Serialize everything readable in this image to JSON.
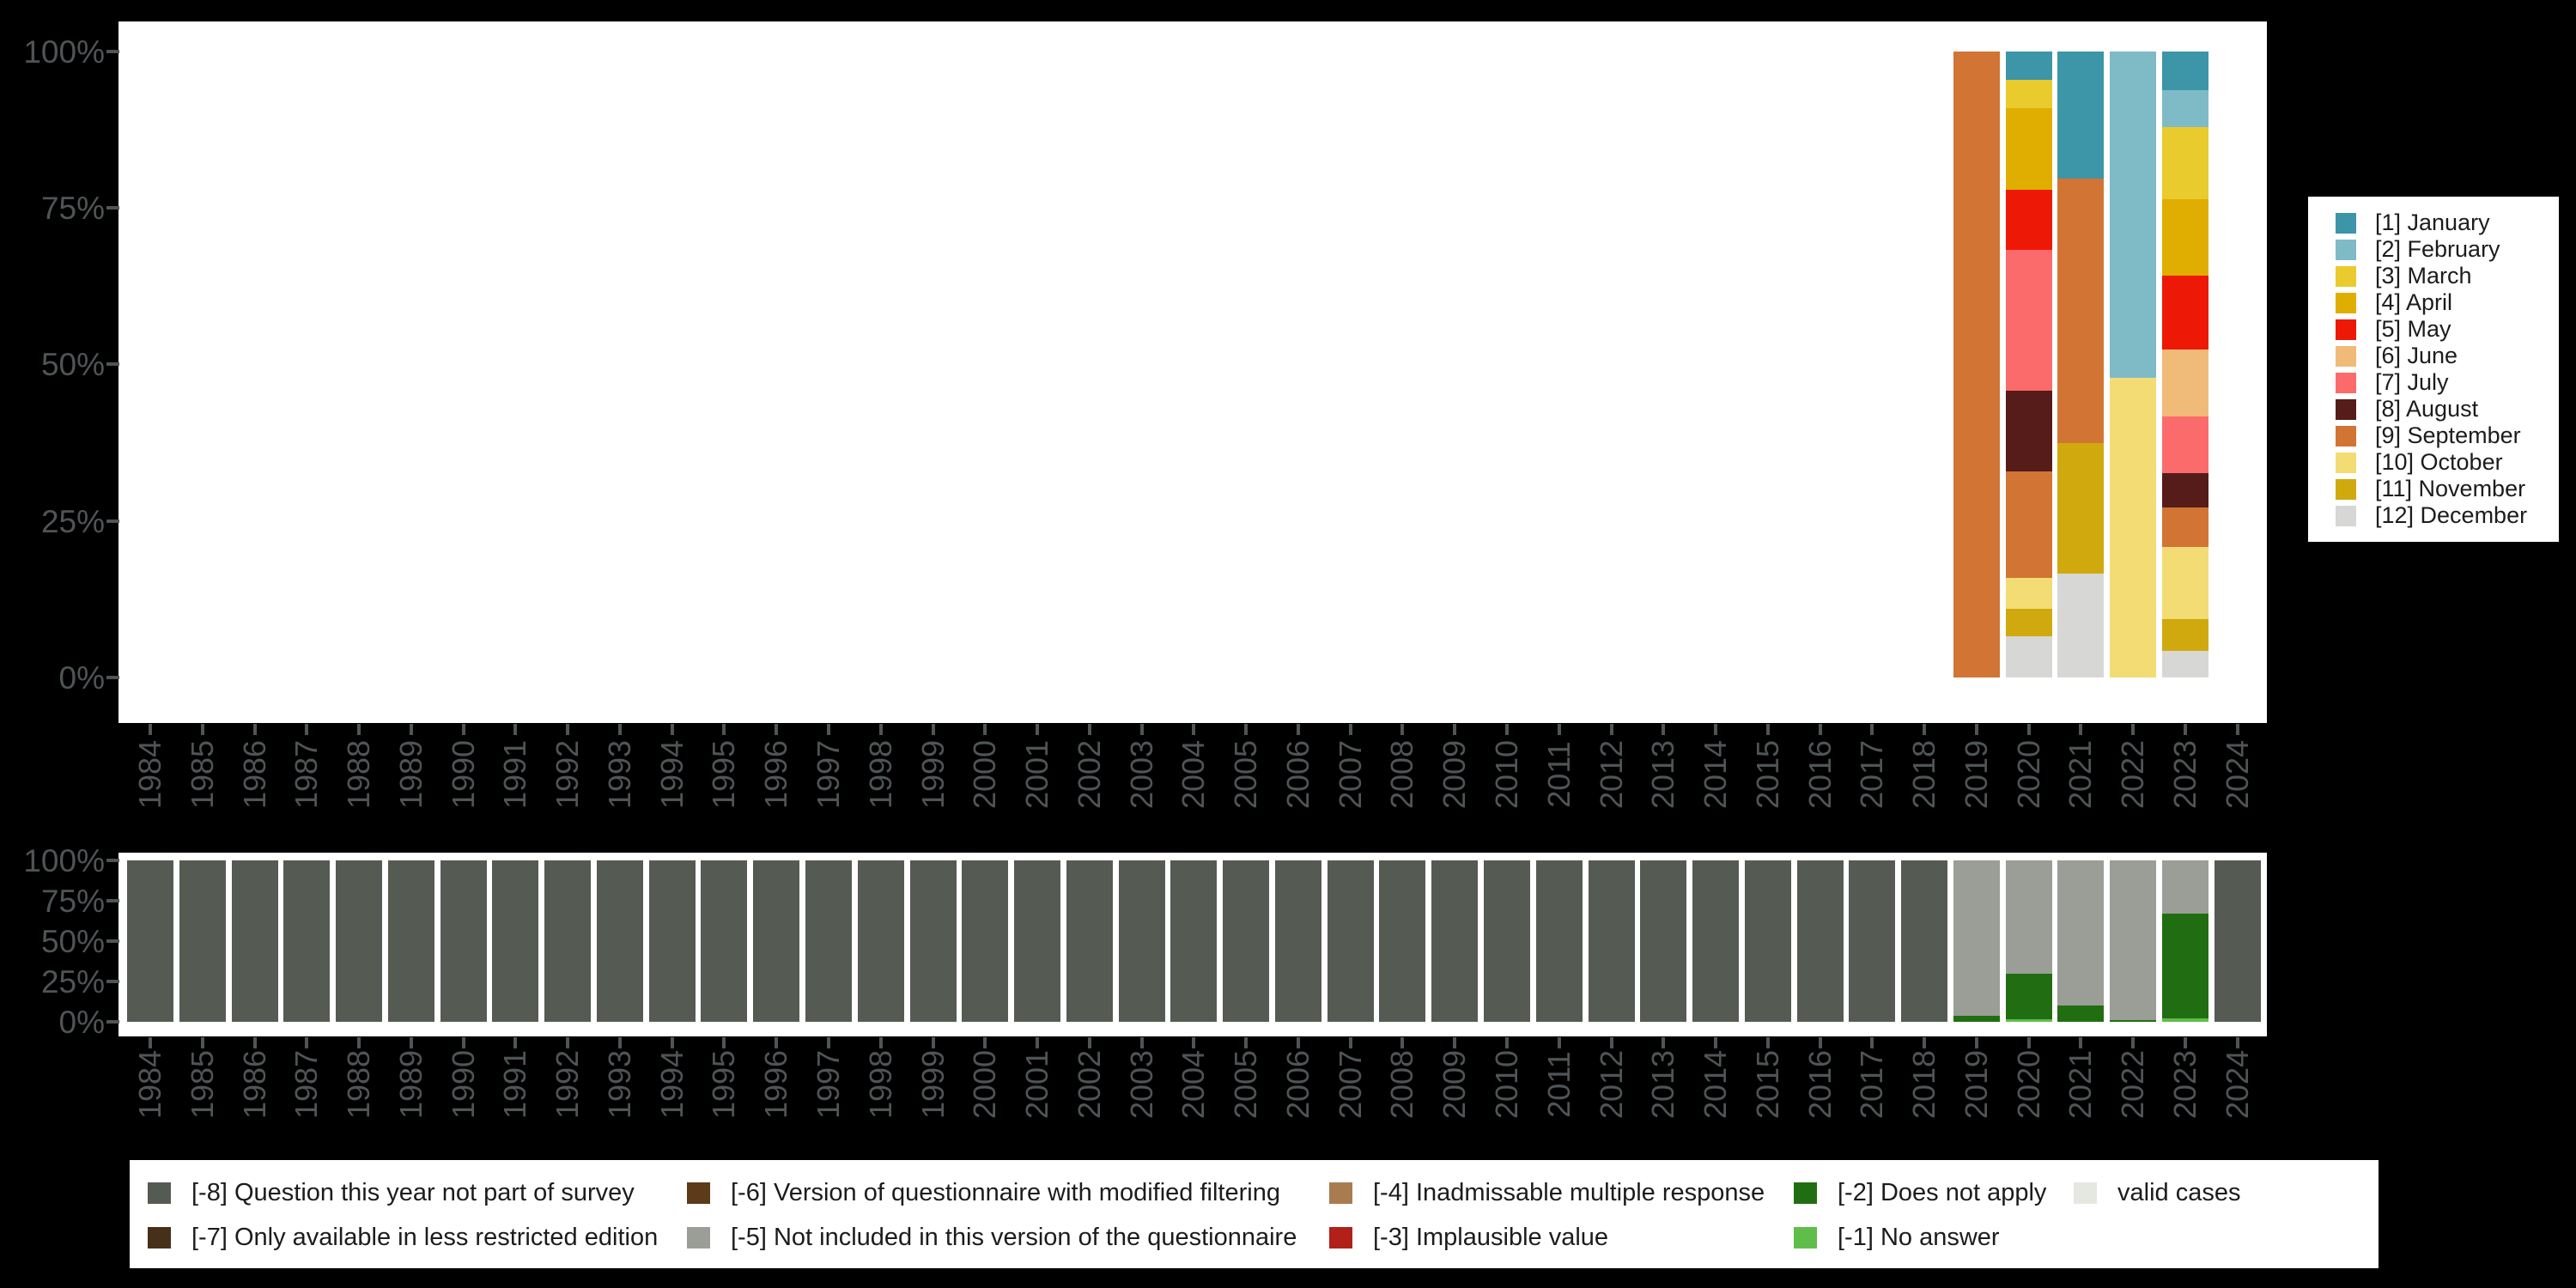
{
  "background_color": "#000000",
  "panel_color": "#ffffff",
  "axis": {
    "color": "#4f5456",
    "y_tick_labels": [
      "100%",
      "75%",
      "50%",
      "25%",
      "0%"
    ]
  },
  "years": [
    "1984",
    "1985",
    "1986",
    "1987",
    "1988",
    "1989",
    "1990",
    "1991",
    "1992",
    "1993",
    "1994",
    "1995",
    "1996",
    "1997",
    "1998",
    "1999",
    "2000",
    "2001",
    "2002",
    "2003",
    "2004",
    "2005",
    "2006",
    "2007",
    "2008",
    "2009",
    "2010",
    "2011",
    "2012",
    "2013",
    "2014",
    "2015",
    "2016",
    "2017",
    "2018",
    "2019",
    "2020",
    "2021",
    "2022",
    "2023",
    "2024"
  ],
  "chart_data": [
    {
      "id": "months",
      "type": "bar",
      "stacked": true,
      "unit": "percent",
      "ylim": [
        0,
        100
      ],
      "y_tick_labels": [
        "0%",
        "25%",
        "50%",
        "75%",
        "100%"
      ],
      "grid": false,
      "legend_position": "right",
      "categories": [
        "1984",
        "1985",
        "1986",
        "1987",
        "1988",
        "1989",
        "1990",
        "1991",
        "1992",
        "1993",
        "1994",
        "1995",
        "1996",
        "1997",
        "1998",
        "1999",
        "2000",
        "2001",
        "2002",
        "2003",
        "2004",
        "2005",
        "2006",
        "2007",
        "2008",
        "2009",
        "2010",
        "2011",
        "2012",
        "2013",
        "2014",
        "2015",
        "2016",
        "2017",
        "2018",
        "2019",
        "2020",
        "2021",
        "2022",
        "2023",
        "2024"
      ],
      "series": [
        {
          "key": "1",
          "label": "[1] January",
          "color": "#3d95a8",
          "values_by_year": {
            "2020": 4.6,
            "2021": 20.4,
            "2023": 6.2
          }
        },
        {
          "key": "2",
          "label": "[2] February",
          "color": "#7fbac7",
          "values_by_year": {
            "2022": 52.2,
            "2023": 5.9
          }
        },
        {
          "key": "3",
          "label": "[3] March",
          "color": "#e9cb2d",
          "values_by_year": {
            "2020": 4.5,
            "2023": 11.6
          }
        },
        {
          "key": "4",
          "label": "[4] April",
          "color": "#dfae00",
          "values_by_year": {
            "2020": 13.1,
            "2023": 12.1
          }
        },
        {
          "key": "5",
          "label": "[5] May",
          "color": "#ee1806",
          "values_by_year": {
            "2020": 9.6,
            "2023": 11.9
          }
        },
        {
          "key": "6",
          "label": "[6] June",
          "color": "#f0ba79",
          "values_by_year": {
            "2023": 10.6
          }
        },
        {
          "key": "7",
          "label": "[7] July",
          "color": "#fc6b6b",
          "values_by_year": {
            "2020": 22.4,
            "2023": 9.1
          }
        },
        {
          "key": "8",
          "label": "[8] August",
          "color": "#551c1a",
          "values_by_year": {
            "2020": 12.9,
            "2023": 5.5
          }
        },
        {
          "key": "9",
          "label": "[9] September",
          "color": "#d27433",
          "values_by_year": {
            "2019": 100,
            "2020": 17.0,
            "2021": 42.2,
            "2023": 6.2
          }
        },
        {
          "key": "10",
          "label": "[10] October",
          "color": "#f3dc74",
          "values_by_year": {
            "2020": 4.9,
            "2022": 47.8,
            "2023": 11.6
          }
        },
        {
          "key": "11",
          "label": "[11] November",
          "color": "#d0a90e",
          "values_by_year": {
            "2020": 4.4,
            "2021": 20.8,
            "2023": 5.1
          }
        },
        {
          "key": "12",
          "label": "[12] December",
          "color": "#d7d7d5",
          "values_by_year": {
            "2020": 6.6,
            "2021": 16.6,
            "2023": 4.2
          }
        }
      ]
    },
    {
      "id": "missing",
      "type": "bar",
      "stacked": true,
      "unit": "percent",
      "ylim": [
        0,
        100
      ],
      "y_tick_labels": [
        "0%",
        "25%",
        "50%",
        "75%",
        "100%"
      ],
      "grid": false,
      "legend_position": "bottom",
      "categories": [
        "1984",
        "1985",
        "1986",
        "1987",
        "1988",
        "1989",
        "1990",
        "1991",
        "1992",
        "1993",
        "1994",
        "1995",
        "1996",
        "1997",
        "1998",
        "1999",
        "2000",
        "2001",
        "2002",
        "2003",
        "2004",
        "2005",
        "2006",
        "2007",
        "2008",
        "2009",
        "2010",
        "2011",
        "2012",
        "2013",
        "2014",
        "2015",
        "2016",
        "2017",
        "2018",
        "2019",
        "2020",
        "2021",
        "2022",
        "2023",
        "2024"
      ],
      "series": [
        {
          "key": "-8",
          "label": "[-8] Question this year not part of survey",
          "color": "#555b53",
          "values_by_year": {
            "1984": 100,
            "1985": 100,
            "1986": 100,
            "1987": 100,
            "1988": 100,
            "1989": 100,
            "1990": 100,
            "1991": 100,
            "1992": 100,
            "1993": 100,
            "1994": 100,
            "1995": 100,
            "1996": 100,
            "1997": 100,
            "1998": 100,
            "1999": 100,
            "2000": 100,
            "2001": 100,
            "2002": 100,
            "2003": 100,
            "2004": 100,
            "2005": 100,
            "2006": 100,
            "2007": 100,
            "2008": 100,
            "2009": 100,
            "2010": 100,
            "2011": 100,
            "2012": 100,
            "2013": 100,
            "2014": 100,
            "2015": 100,
            "2016": 100,
            "2017": 100,
            "2018": 100,
            "2024": 100
          }
        },
        {
          "key": "-5",
          "label": "[-5] Not included in this version of the questionnaire",
          "color": "#9a9e96",
          "values_by_year": {
            "2019": 96.3,
            "2020": 70.0,
            "2021": 89.8,
            "2022": 99.0,
            "2023": 32.9
          }
        },
        {
          "key": "-2",
          "label": "[-2] Does not apply",
          "color": "#216e12",
          "values_by_year": {
            "2019": 3.7,
            "2020": 28.6,
            "2021": 10.2,
            "2022": 1.0,
            "2023": 65.0
          }
        },
        {
          "key": "-1",
          "label": "[-1] No answer",
          "color": "#5fbe4a",
          "values_by_year": {
            "2020": 1.4,
            "2023": 2.1
          }
        }
      ]
    }
  ],
  "legend_months": {
    "items": [
      {
        "label": "[1] January",
        "color": "#3d95a8"
      },
      {
        "label": "[2] February",
        "color": "#7fbac7"
      },
      {
        "label": "[3] March",
        "color": "#e9cb2d"
      },
      {
        "label": "[4] April",
        "color": "#dfae00"
      },
      {
        "label": "[5] May",
        "color": "#ee1806"
      },
      {
        "label": "[6] June",
        "color": "#f0ba79"
      },
      {
        "label": "[7] July",
        "color": "#fc6b6b"
      },
      {
        "label": "[8] August",
        "color": "#551c1a"
      },
      {
        "label": "[9] September",
        "color": "#d27433"
      },
      {
        "label": "[10] October",
        "color": "#f3dc74"
      },
      {
        "label": "[11] November",
        "color": "#d0a90e"
      },
      {
        "label": "[12] December",
        "color": "#d7d7d5"
      }
    ]
  },
  "legend_missing": {
    "items": [
      {
        "label": "[-8] Question this year not part of survey",
        "color": "#555b53",
        "col": 0,
        "row": 0
      },
      {
        "label": "[-7] Only available in less restricted edition",
        "color": "#47301a",
        "col": 0,
        "row": 1
      },
      {
        "label": "[-6] Version of questionnaire with modified filtering",
        "color": "#5d3a18",
        "col": 1,
        "row": 0
      },
      {
        "label": "[-5] Not included in this version of the questionnaire",
        "color": "#9a9e96",
        "col": 1,
        "row": 1
      },
      {
        "label": "[-4] Inadmissable multiple response",
        "color": "#a97c50",
        "col": 2,
        "row": 0
      },
      {
        "label": "[-3] Implausible value",
        "color": "#b2201a",
        "col": 2,
        "row": 1
      },
      {
        "label": "[-2] Does not apply",
        "color": "#216e12",
        "col": 3,
        "row": 0
      },
      {
        "label": "[-1] No answer",
        "color": "#5fbe4a",
        "col": 3,
        "row": 1
      },
      {
        "label": "valid cases",
        "color": "#e4e8e0",
        "col": 4,
        "row": 0
      }
    ]
  }
}
